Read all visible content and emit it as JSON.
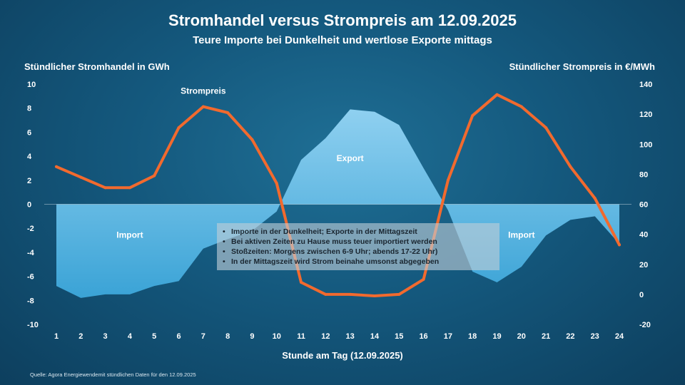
{
  "title": "Stromhandel versus Strompreis am 12.09.2025",
  "subtitle": "Teure Importe bei Dunkelheit und wertlose Exporte mittags",
  "source": "Quelle: Agora Energiewendemit stündlichen Daten für den 12.09.2025",
  "notes": [
    "Importe in der Dunkelheit; Exporte in der Mittagszeit",
    "Bei aktiven Zeiten zu Hause muss teuer importiert werden",
    "Stoßzeiten: Morgens zwischen 6-9 Uhr; abends 17-22 Uhr)",
    "In der Mittagszeit wird Strom beinahe umsonst abgegeben"
  ],
  "colors": {
    "background": "#14587d",
    "area_top": "#8fd0f0",
    "area_bottom": "#3aa3d6",
    "price_line": "#f26a2e"
  },
  "chart_data": {
    "type": "area",
    "x": [
      1,
      2,
      3,
      4,
      5,
      6,
      7,
      8,
      9,
      10,
      11,
      12,
      13,
      14,
      15,
      16,
      17,
      18,
      19,
      20,
      21,
      22,
      23,
      24
    ],
    "xlabel": "Stunde am Tag (12.09.2025)",
    "ylabel_left": "Stündlicher Stromhandel in GWh",
    "ylabel_right": "Stündlicher Strompreis in €/MWh",
    "ylim_left": [
      -10,
      10
    ],
    "ylim_right": [
      -20,
      140
    ],
    "yticks_left": [
      10,
      8,
      6,
      4,
      2,
      0,
      -2,
      -4,
      -6,
      -8,
      -10
    ],
    "yticks_right": [
      140,
      120,
      100,
      80,
      60,
      40,
      20,
      0,
      -20
    ],
    "grid": false,
    "series": [
      {
        "name": "Stromhandel",
        "axis": "left",
        "type": "area",
        "values": [
          -6.8,
          -7.8,
          -7.5,
          -7.5,
          -6.8,
          -6.4,
          -3.7,
          -2.9,
          -2.2,
          -0.6,
          3.7,
          5.5,
          7.9,
          7.7,
          6.6,
          3.0,
          -0.5,
          -5.6,
          -6.5,
          -5.2,
          -2.6,
          -1.3,
          -1.0,
          -3.3
        ]
      },
      {
        "name": "Strompreis",
        "axis": "right",
        "type": "line",
        "values": [
          85,
          78,
          71,
          71,
          79,
          111,
          125,
          121,
          103,
          74,
          8,
          0,
          0,
          -1,
          0,
          10,
          76,
          119,
          133,
          125,
          111,
          85,
          64,
          33
        ]
      }
    ],
    "annotations": [
      {
        "text": "Strompreis",
        "x": 7,
        "y": 9.2,
        "axis": "left"
      },
      {
        "text": "Export",
        "x": 13,
        "y": 3.6,
        "axis": "left"
      },
      {
        "text": "Import",
        "x": 4,
        "y": -2.8,
        "axis": "left"
      },
      {
        "text": "Import",
        "x": 20,
        "y": -2.8,
        "axis": "left"
      }
    ]
  }
}
